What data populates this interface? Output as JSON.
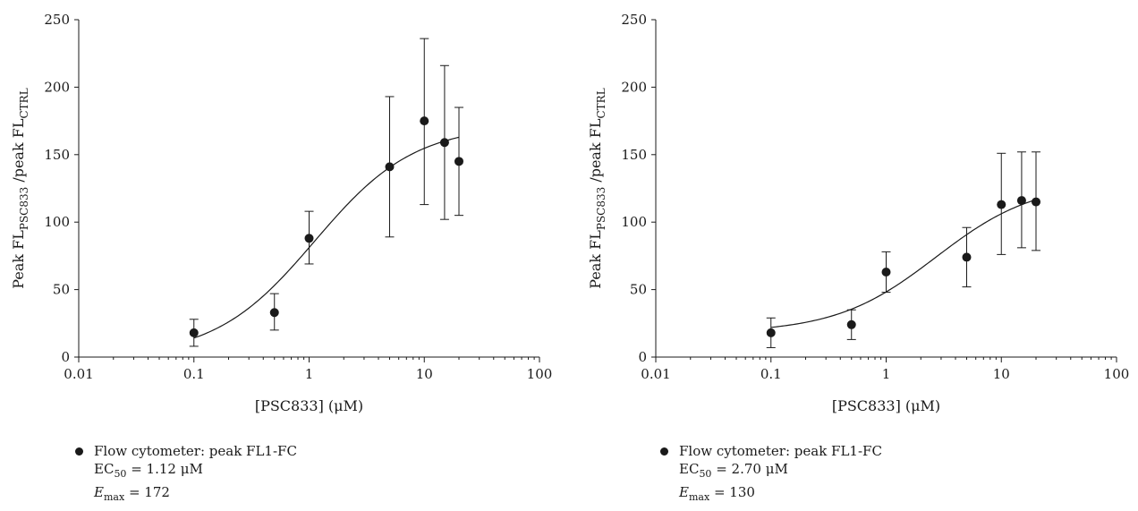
{
  "chart_data": [
    {
      "type": "scatter",
      "xscale": "log",
      "xlim": [
        0.01,
        100
      ],
      "ylim": [
        0,
        250
      ],
      "xticks": [
        "0.01",
        "0.1",
        "1",
        "10",
        "100"
      ],
      "yticks": [
        "0",
        "50",
        "100",
        "150",
        "200",
        "250"
      ],
      "xlabel": "[PSC833] (μM)",
      "ylabel": {
        "main": "Peak FL",
        "sub1": "PSC833",
        "mid": " /peak FL",
        "sub2": "CTRL"
      },
      "series": [
        {
          "name": "Flow cytometer: peak FL1-FC",
          "x": [
            0.1,
            0.5,
            1,
            5,
            10,
            15,
            20
          ],
          "y": [
            18,
            33,
            88,
            141,
            175,
            159,
            145
          ],
          "err_upper": [
            28,
            47,
            108,
            193,
            236,
            216,
            185
          ],
          "err_lower": [
            8,
            20,
            69,
            89,
            113,
            102,
            105
          ]
        }
      ],
      "fit": {
        "ec50": 1.12,
        "emax": 172,
        "bottom": 0,
        "hill": 1
      },
      "legend": {
        "label": "Flow cytometer: peak FL1-FC",
        "ec50_text": "= 1.12 μM",
        "emax_text": "= 172"
      }
    },
    {
      "type": "scatter",
      "xscale": "log",
      "xlim": [
        0.01,
        100
      ],
      "ylim": [
        0,
        250
      ],
      "xticks": [
        "0.01",
        "0.1",
        "1",
        "10",
        "100"
      ],
      "yticks": [
        "0",
        "50",
        "100",
        "150",
        "200",
        "250"
      ],
      "xlabel": "[PSC833] (μM)",
      "ylabel": {
        "main": "Peak FL",
        "sub1": "PSC833",
        "mid": " /peak FL",
        "sub2": "CTRL"
      },
      "series": [
        {
          "name": "Flow cytometer: peak FL1-FC",
          "x": [
            0.1,
            0.5,
            1,
            5,
            10,
            15,
            20
          ],
          "y": [
            18,
            24,
            63,
            74,
            113,
            116,
            115
          ],
          "err_upper": [
            29,
            35,
            78,
            96,
            151,
            152,
            152
          ],
          "err_lower": [
            7,
            13,
            48,
            52,
            76,
            81,
            79
          ]
        }
      ],
      "fit": {
        "ec50": 2.7,
        "emax": 130,
        "bottom": 18,
        "hill": 1
      },
      "legend": {
        "label": "Flow cytometer: peak FL1-FC",
        "ec50_text": "= 2.70 μM",
        "emax_text": "= 130"
      }
    }
  ],
  "legend_symbols": {
    "ec": "EC",
    "ec_sub": "50",
    "e": "E",
    "e_sub": "max"
  }
}
